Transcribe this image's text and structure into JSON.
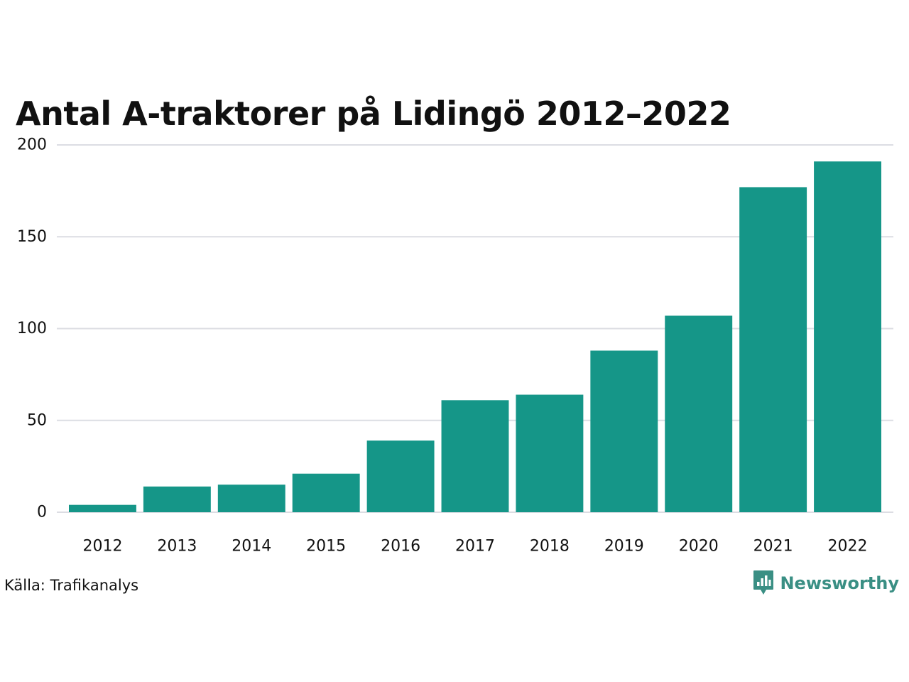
{
  "title": "Antal A-traktorer på Lidingö 2012–2022",
  "source": "Källa: Trafikanalys",
  "brand": {
    "name": "Newsworthy",
    "icon": "bar-chart-speech-bubble-icon",
    "color": "#3a8f84"
  },
  "colors": {
    "bar": "#159688",
    "grid": "#dcdde3",
    "text": "#111111"
  },
  "chart_data": {
    "type": "bar",
    "title": "Antal A-traktorer på Lidingö 2012–2022",
    "xlabel": "",
    "ylabel": "",
    "categories": [
      "2012",
      "2013",
      "2014",
      "2015",
      "2016",
      "2017",
      "2018",
      "2019",
      "2020",
      "2021",
      "2022"
    ],
    "values": [
      4,
      14,
      15,
      21,
      39,
      61,
      64,
      88,
      107,
      177,
      191
    ],
    "ylim": [
      0,
      200
    ],
    "yticks": [
      0,
      50,
      100,
      150,
      200
    ],
    "grid": true,
    "legend": "none"
  }
}
